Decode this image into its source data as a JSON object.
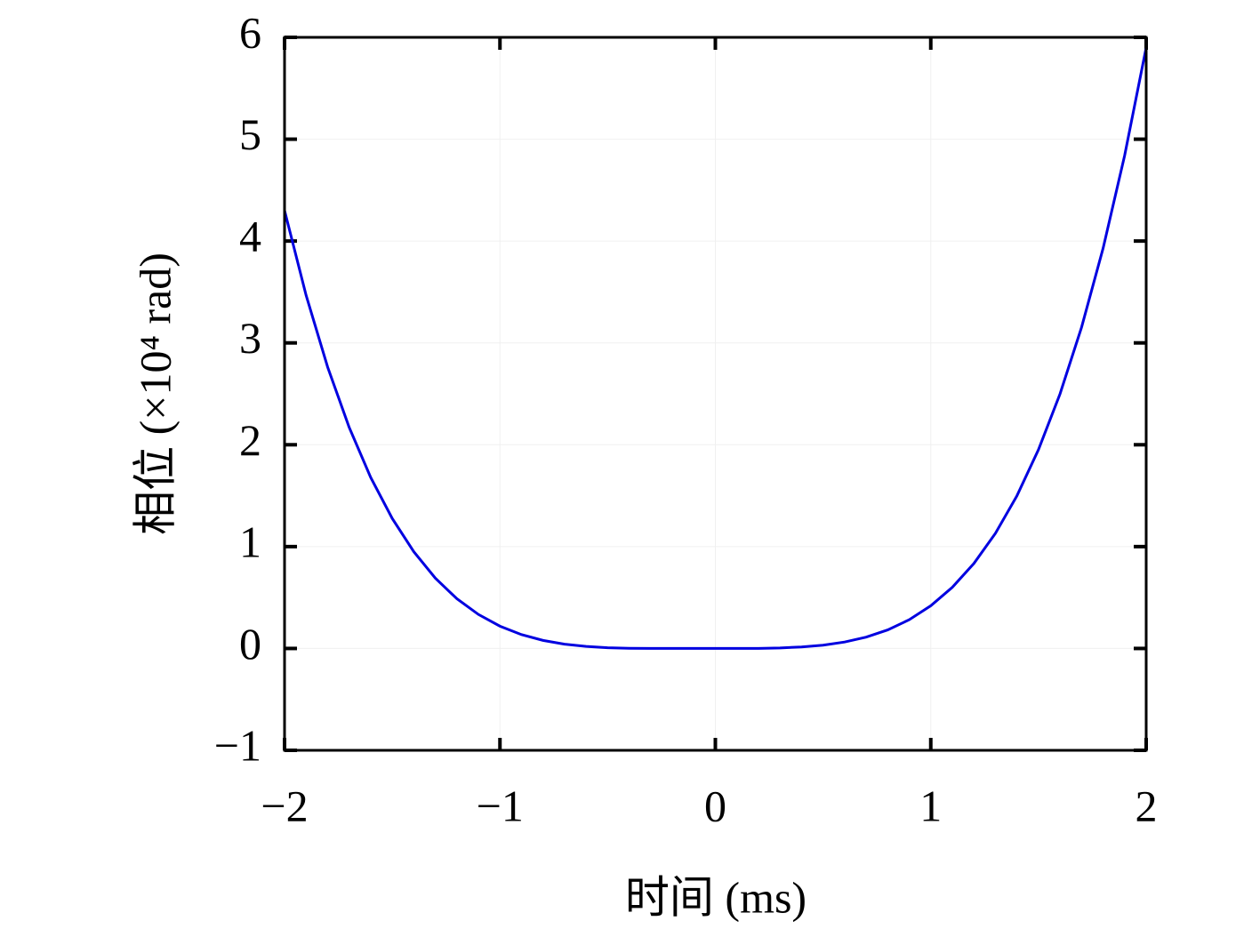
{
  "chart_data": {
    "type": "line",
    "xlabel": "时间 (ms)",
    "ylabel": "相位 (×10⁴ rad)",
    "x": [
      -2.0,
      -1.9,
      -1.8,
      -1.7,
      -1.6,
      -1.5,
      -1.4,
      -1.3,
      -1.2,
      -1.1,
      -1.0,
      -0.9,
      -0.8,
      -0.7,
      -0.6,
      -0.5,
      -0.4,
      -0.3,
      -0.2,
      -0.1,
      0.0,
      0.1,
      0.2,
      0.3,
      0.4,
      0.5,
      0.6,
      0.7,
      0.8,
      0.9,
      1.0,
      1.1,
      1.2,
      1.3,
      1.4,
      1.5,
      1.6,
      1.7,
      1.8,
      1.9,
      2.0
    ],
    "series": [
      {
        "color": "#0000e0",
        "values": [
          4.3,
          3.468,
          2.763,
          2.171,
          1.679,
          1.276,
          0.95,
          0.69,
          0.488,
          0.334,
          0.219,
          0.136,
          0.079,
          0.042,
          0.02,
          0.007,
          0.002,
          0,
          0,
          0,
          0,
          0,
          0.001,
          0.005,
          0.015,
          0.032,
          0.063,
          0.111,
          0.182,
          0.282,
          0.419,
          0.6,
          0.834,
          1.13,
          1.499,
          1.952,
          2.499,
          3.153,
          3.929,
          4.84,
          5.9
        ]
      }
    ],
    "xlim": [
      -2,
      2
    ],
    "ylim": [
      -1,
      6
    ],
    "xticks": [
      {
        "value": -2,
        "label": "−2"
      },
      {
        "value": -1,
        "label": "−1"
      },
      0,
      1,
      2
    ],
    "yticks": [
      {
        "value": -1,
        "label": "−1"
      },
      0,
      1,
      2,
      3,
      4,
      5,
      6
    ],
    "grid": true
  }
}
